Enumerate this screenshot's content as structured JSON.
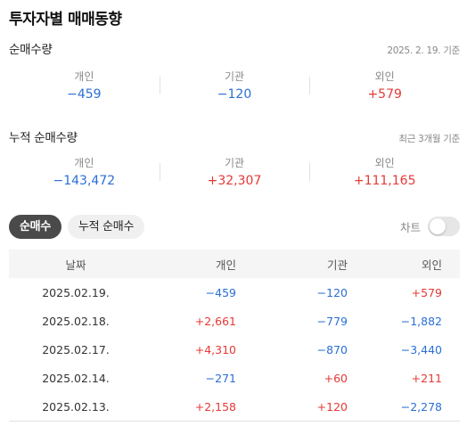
{
  "title": "투자자별 매매동향",
  "daily": {
    "label": "순매수량",
    "date_note": "2025. 2. 19. 기준",
    "items": [
      {
        "label": "개인",
        "value": "−459"
      },
      {
        "label": "기관",
        "value": "−120"
      },
      {
        "label": "외인",
        "value": "+579"
      }
    ]
  },
  "cumulative": {
    "label": "누적 순매수량",
    "period_note": "최근 3개월 기준",
    "items": [
      {
        "label": "개인",
        "value": "−143,472"
      },
      {
        "label": "기관",
        "value": "+32,307"
      },
      {
        "label": "외인",
        "value": "+111,165"
      }
    ]
  },
  "tabs": {
    "net_buy": "순매수",
    "cumulative_net_buy": "누적 순매수"
  },
  "chart_toggle": {
    "label": "차트",
    "on": false
  },
  "table": {
    "headers": {
      "date": "날짜",
      "individual": "개인",
      "institution": "기관",
      "foreign": "외인"
    },
    "rows": [
      {
        "date": "2025.02.19.",
        "individual": "−459",
        "institution": "−120",
        "foreign": "+579"
      },
      {
        "date": "2025.02.18.",
        "individual": "+2,661",
        "institution": "−779",
        "foreign": "−1,882"
      },
      {
        "date": "2025.02.17.",
        "individual": "+4,310",
        "institution": "−870",
        "foreign": "−3,440"
      },
      {
        "date": "2025.02.14.",
        "individual": "−271",
        "institution": "+60",
        "foreign": "+211"
      },
      {
        "date": "2025.02.13.",
        "individual": "+2,158",
        "institution": "+120",
        "foreign": "−2,278"
      }
    ]
  },
  "colors": {
    "positive": "#e53935",
    "negative": "#2b6fd6",
    "tab_active_bg": "#4a4a4a"
  }
}
